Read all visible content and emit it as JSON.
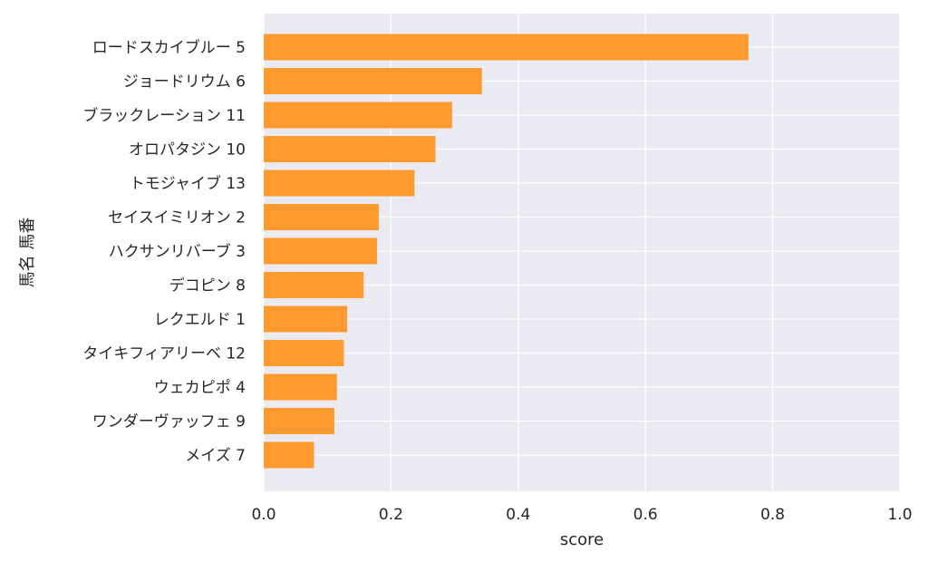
{
  "chart_data": {
    "type": "bar",
    "orientation": "horizontal",
    "categories": [
      "ロードスカイブルー 5",
      "ジョードリウム 6",
      "ブラックレーション 11",
      "オロパタジン 10",
      "トモジャイブ 13",
      "セイスイミリオン 2",
      "ハクサンリバーブ 3",
      "デコピン 8",
      "レクエルド 1",
      "タイキフィアリーベ 12",
      "ウェカピポ 4",
      "ワンダーヴァッフェ 9",
      "メイズ 7"
    ],
    "values": [
      0.762,
      0.343,
      0.296,
      0.27,
      0.237,
      0.181,
      0.178,
      0.157,
      0.131,
      0.126,
      0.115,
      0.111,
      0.079
    ],
    "xlabel": "score",
    "ylabel": "馬名 馬番",
    "xlim": [
      0,
      1.0
    ],
    "xticks": [
      "0.0",
      "0.2",
      "0.4",
      "0.6",
      "0.8",
      "1.0"
    ],
    "grid": true,
    "colors": {
      "bar": "#ff9a2e",
      "plot_background": "#eaeaf2",
      "grid": "#ffffff"
    }
  }
}
